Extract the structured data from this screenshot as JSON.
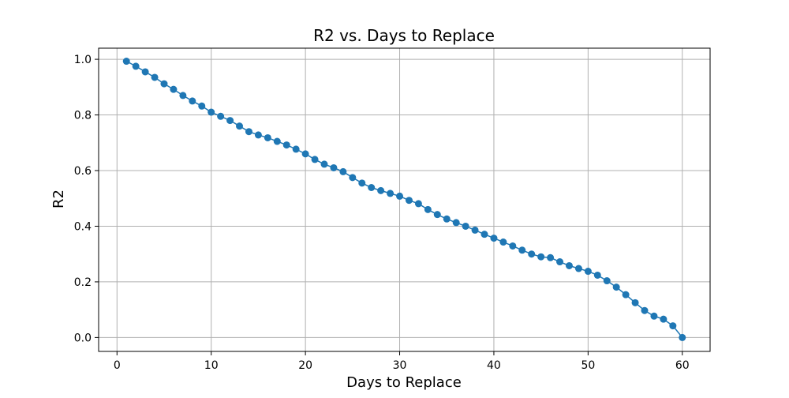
{
  "chart_data": {
    "type": "line",
    "title": "R2 vs. Days to Replace",
    "xlabel": "Days to Replace",
    "ylabel": "R2",
    "xlim": [
      -1.95,
      62.95
    ],
    "ylim": [
      -0.05,
      1.04
    ],
    "xticks": [
      0,
      10,
      20,
      30,
      40,
      50,
      60
    ],
    "yticks": [
      0.0,
      0.2,
      0.4,
      0.6,
      0.8,
      1.0
    ],
    "ytick_labels": [
      "0.0",
      "0.2",
      "0.4",
      "0.6",
      "0.8",
      "1.0"
    ],
    "grid": true,
    "marker": "circle",
    "series": [
      {
        "color": "#1f77b4",
        "x": [
          1,
          2,
          3,
          4,
          5,
          6,
          7,
          8,
          9,
          10,
          11,
          12,
          13,
          14,
          15,
          16,
          17,
          18,
          19,
          20,
          21,
          22,
          23,
          24,
          25,
          26,
          27,
          28,
          29,
          30,
          31,
          32,
          33,
          34,
          35,
          36,
          37,
          38,
          39,
          40,
          41,
          42,
          43,
          44,
          45,
          46,
          47,
          48,
          49,
          50,
          51,
          52,
          53,
          54,
          55,
          56,
          57,
          58,
          59,
          60
        ],
        "y": [
          0.993,
          0.975,
          0.955,
          0.935,
          0.912,
          0.892,
          0.87,
          0.85,
          0.832,
          0.81,
          0.795,
          0.78,
          0.76,
          0.74,
          0.728,
          0.718,
          0.705,
          0.692,
          0.677,
          0.66,
          0.64,
          0.623,
          0.61,
          0.596,
          0.575,
          0.555,
          0.539,
          0.528,
          0.518,
          0.508,
          0.493,
          0.481,
          0.46,
          0.442,
          0.426,
          0.413,
          0.4,
          0.386,
          0.371,
          0.357,
          0.343,
          0.329,
          0.314,
          0.3,
          0.29,
          0.287,
          0.272,
          0.258,
          0.248,
          0.238,
          0.224,
          0.204,
          0.181,
          0.154,
          0.125,
          0.097,
          0.077,
          0.066,
          0.042,
          0.0
        ]
      }
    ]
  }
}
